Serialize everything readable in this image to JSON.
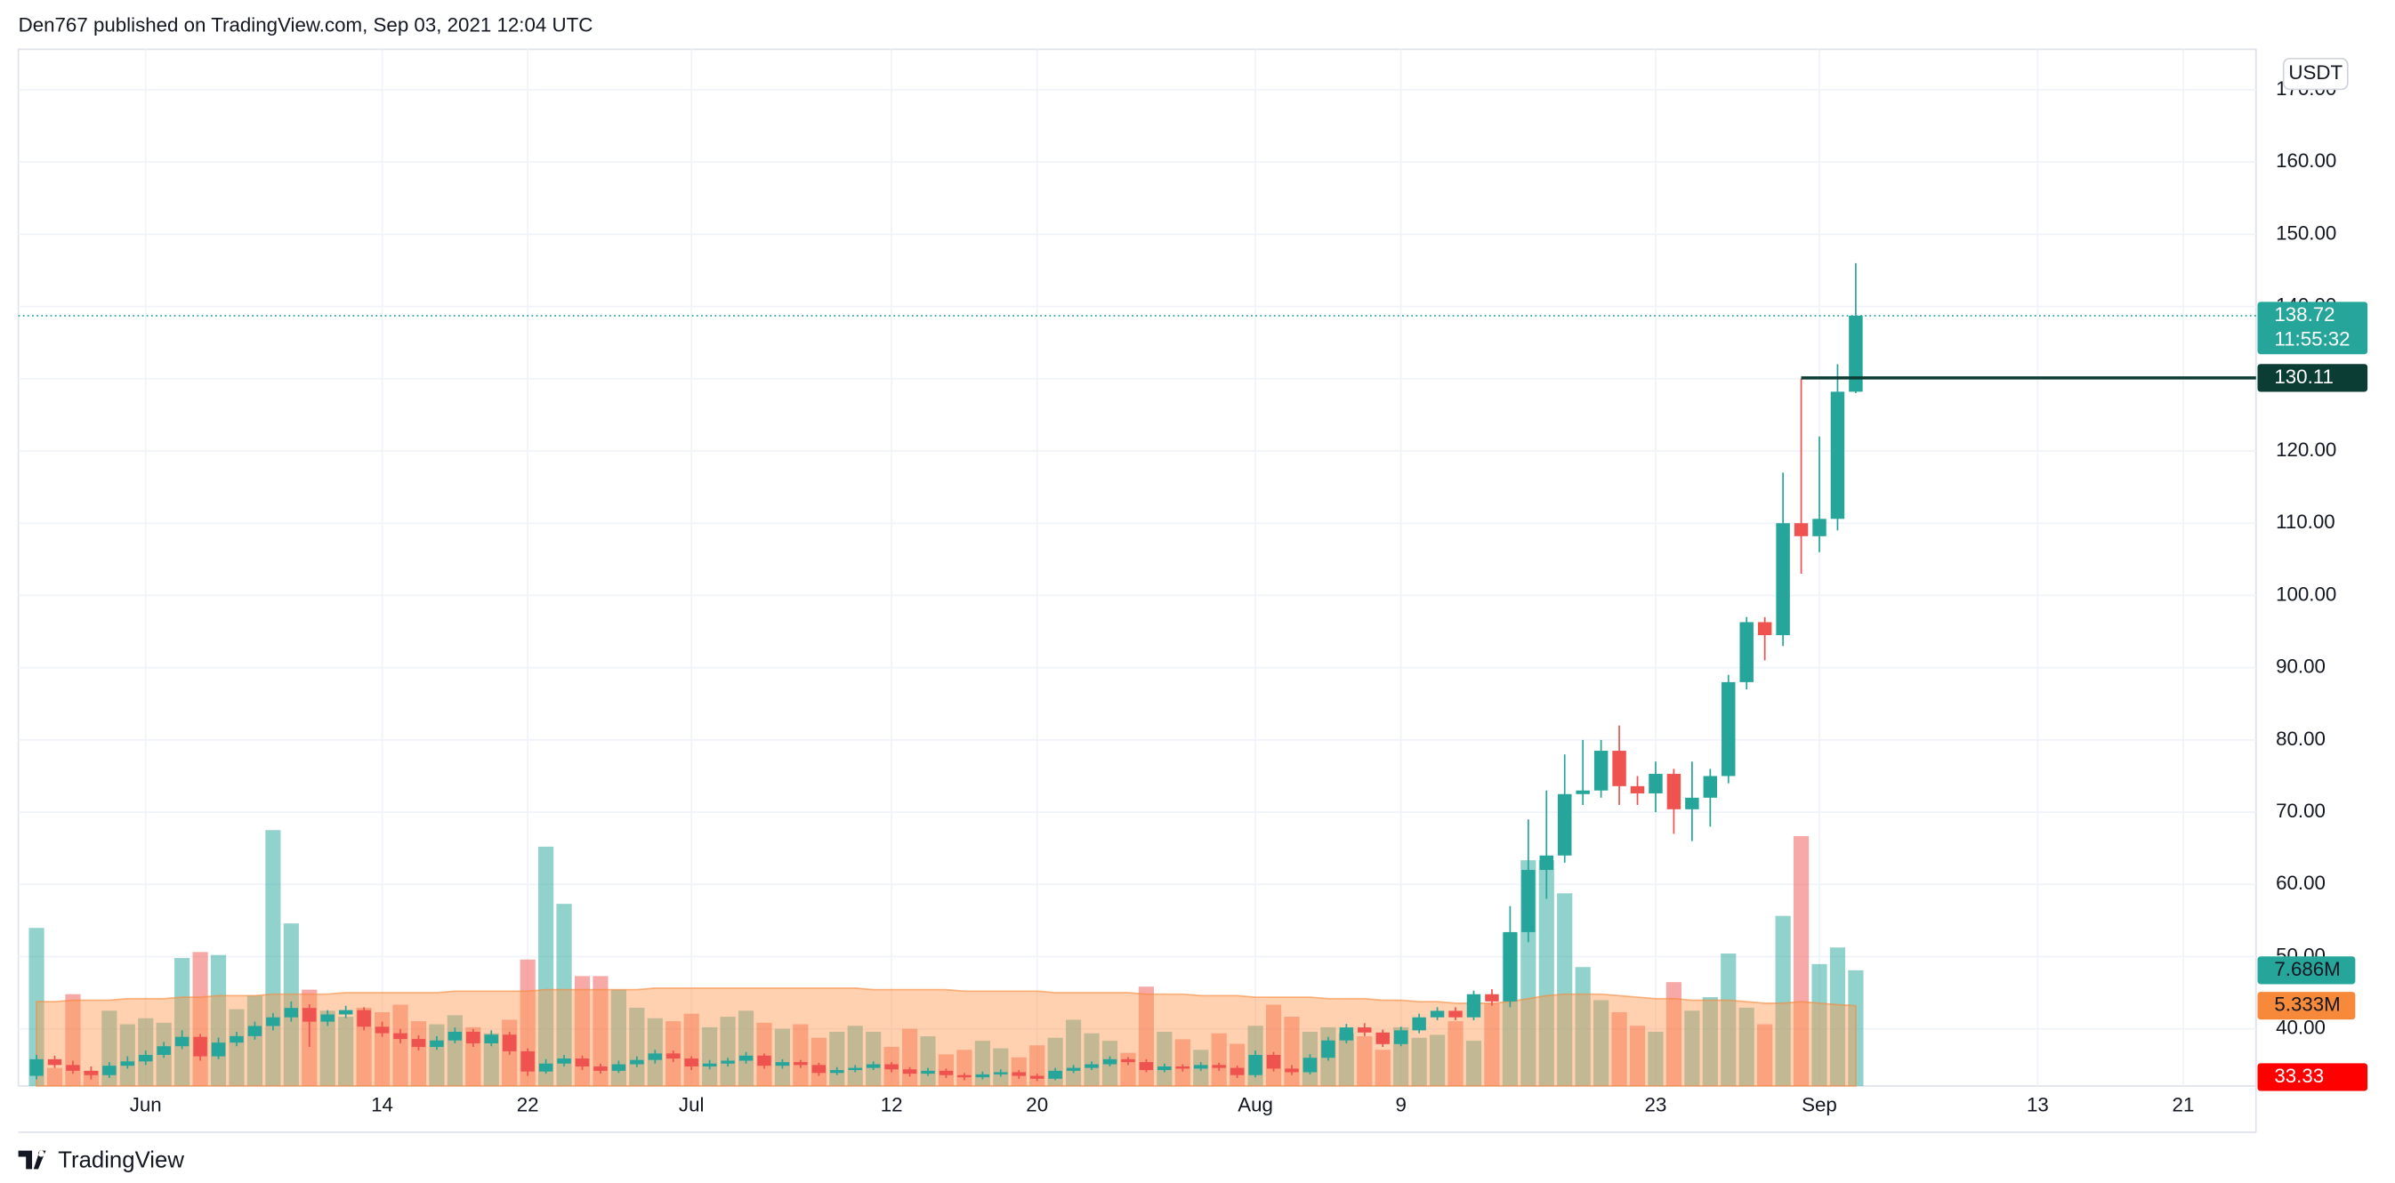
{
  "header": "Den767 published on TradingView.com, Sep 03, 2021 12:04 UTC",
  "footer": "TradingView",
  "chart_data": {
    "type": "candlestick",
    "currency": "USDT",
    "up_color": "#26a69a",
    "down_color": "#ef5350",
    "grid": true,
    "x": [
      "2021-05-26",
      "2021-05-27",
      "2021-05-28",
      "2021-05-29",
      "2021-05-30",
      "2021-05-31",
      "2021-06-01",
      "2021-06-02",
      "2021-06-03",
      "2021-06-04",
      "2021-06-05",
      "2021-06-06",
      "2021-06-07",
      "2021-06-08",
      "2021-06-09",
      "2021-06-10",
      "2021-06-11",
      "2021-06-12",
      "2021-06-13",
      "2021-06-14",
      "2021-06-15",
      "2021-06-16",
      "2021-06-17",
      "2021-06-18",
      "2021-06-19",
      "2021-06-20",
      "2021-06-21",
      "2021-06-22",
      "2021-06-23",
      "2021-06-24",
      "2021-06-25",
      "2021-06-26",
      "2021-06-27",
      "2021-06-28",
      "2021-06-29",
      "2021-06-30",
      "2021-07-01",
      "2021-07-02",
      "2021-07-03",
      "2021-07-04",
      "2021-07-05",
      "2021-07-06",
      "2021-07-07",
      "2021-07-08",
      "2021-07-09",
      "2021-07-10",
      "2021-07-11",
      "2021-07-12",
      "2021-07-13",
      "2021-07-14",
      "2021-07-15",
      "2021-07-16",
      "2021-07-17",
      "2021-07-18",
      "2021-07-19",
      "2021-07-20",
      "2021-07-21",
      "2021-07-22",
      "2021-07-23",
      "2021-07-24",
      "2021-07-25",
      "2021-07-26",
      "2021-07-27",
      "2021-07-28",
      "2021-07-29",
      "2021-07-30",
      "2021-07-31",
      "2021-08-01",
      "2021-08-02",
      "2021-08-03",
      "2021-08-04",
      "2021-08-05",
      "2021-08-06",
      "2021-08-07",
      "2021-08-08",
      "2021-08-09",
      "2021-08-10",
      "2021-08-11",
      "2021-08-12",
      "2021-08-13",
      "2021-08-14",
      "2021-08-15",
      "2021-08-16",
      "2021-08-17",
      "2021-08-18",
      "2021-08-19",
      "2021-08-20",
      "2021-08-21",
      "2021-08-22",
      "2021-08-23",
      "2021-08-24",
      "2021-08-25",
      "2021-08-26",
      "2021-08-27",
      "2021-08-28",
      "2021-08-29",
      "2021-08-30",
      "2021-08-31",
      "2021-09-01",
      "2021-09-02",
      "2021-09-03"
    ],
    "ohlc": [
      [
        33.5,
        36.4,
        33.0,
        35.8
      ],
      [
        35.8,
        36.3,
        34.6,
        35.0
      ],
      [
        35.0,
        35.6,
        33.8,
        34.2
      ],
      [
        34.2,
        34.8,
        33.0,
        33.6
      ],
      [
        33.6,
        35.4,
        33.2,
        34.9
      ],
      [
        34.9,
        36.2,
        34.5,
        35.5
      ],
      [
        35.5,
        37.0,
        35.0,
        36.4
      ],
      [
        36.4,
        38.2,
        36.0,
        37.6
      ],
      [
        37.6,
        39.8,
        37.2,
        38.9
      ],
      [
        38.9,
        39.3,
        35.6,
        36.2
      ],
      [
        36.2,
        38.8,
        35.8,
        38.1
      ],
      [
        38.1,
        39.6,
        37.6,
        39.0
      ],
      [
        39.0,
        41.0,
        38.5,
        40.4
      ],
      [
        40.4,
        42.2,
        39.8,
        41.6
      ],
      [
        41.6,
        43.8,
        41.0,
        42.9
      ],
      [
        42.9,
        43.4,
        37.5,
        41.0
      ],
      [
        41.0,
        42.6,
        40.4,
        42.0
      ],
      [
        42.0,
        43.2,
        41.5,
        42.6
      ],
      [
        42.6,
        43.0,
        39.8,
        40.3
      ],
      [
        40.3,
        41.0,
        38.9,
        39.4
      ],
      [
        39.4,
        40.0,
        38.0,
        38.6
      ],
      [
        38.6,
        39.1,
        37.0,
        37.5
      ],
      [
        37.5,
        39.0,
        37.1,
        38.4
      ],
      [
        38.4,
        40.2,
        38.0,
        39.6
      ],
      [
        39.6,
        40.0,
        37.5,
        38.0
      ],
      [
        38.0,
        39.8,
        37.6,
        39.2
      ],
      [
        39.2,
        39.6,
        36.4,
        36.9
      ],
      [
        36.9,
        37.3,
        33.5,
        34.1
      ],
      [
        34.1,
        35.8,
        33.8,
        35.2
      ],
      [
        35.2,
        36.4,
        34.8,
        35.9
      ],
      [
        35.9,
        36.3,
        34.3,
        34.8
      ],
      [
        34.8,
        35.2,
        33.8,
        34.2
      ],
      [
        34.2,
        35.6,
        33.9,
        35.1
      ],
      [
        35.1,
        36.2,
        34.7,
        35.7
      ],
      [
        35.7,
        37.1,
        35.2,
        36.6
      ],
      [
        36.6,
        37.0,
        35.4,
        35.9
      ],
      [
        35.9,
        36.2,
        34.3,
        34.8
      ],
      [
        34.8,
        35.7,
        34.4,
        35.2
      ],
      [
        35.2,
        36.0,
        34.8,
        35.6
      ],
      [
        35.6,
        36.8,
        35.2,
        36.3
      ],
      [
        36.3,
        36.6,
        34.5,
        34.9
      ],
      [
        34.9,
        35.8,
        34.5,
        35.4
      ],
      [
        35.4,
        35.7,
        34.6,
        35.0
      ],
      [
        35.0,
        35.3,
        33.5,
        33.9
      ],
      [
        33.9,
        34.7,
        33.6,
        34.3
      ],
      [
        34.3,
        35.0,
        34.0,
        34.6
      ],
      [
        34.6,
        35.5,
        34.3,
        35.1
      ],
      [
        35.1,
        35.4,
        34.0,
        34.4
      ],
      [
        34.4,
        34.7,
        33.4,
        33.8
      ],
      [
        33.8,
        34.6,
        33.5,
        34.2
      ],
      [
        34.2,
        34.5,
        33.2,
        33.6
      ],
      [
        33.6,
        33.9,
        32.9,
        33.3
      ],
      [
        33.3,
        34.1,
        33.0,
        33.7
      ],
      [
        33.7,
        34.4,
        33.4,
        34.0
      ],
      [
        34.0,
        34.3,
        33.1,
        33.5
      ],
      [
        33.5,
        33.8,
        32.8,
        33.1
      ],
      [
        33.1,
        34.6,
        32.9,
        34.2
      ],
      [
        34.2,
        35.0,
        33.9,
        34.6
      ],
      [
        34.6,
        35.5,
        34.3,
        35.1
      ],
      [
        35.1,
        36.2,
        34.8,
        35.8
      ],
      [
        35.8,
        36.1,
        35.0,
        35.4
      ],
      [
        35.4,
        35.8,
        34.0,
        34.3
      ],
      [
        34.3,
        35.2,
        34.0,
        34.8
      ],
      [
        34.8,
        35.1,
        34.1,
        34.5
      ],
      [
        34.5,
        35.4,
        34.2,
        35.0
      ],
      [
        35.0,
        35.3,
        34.2,
        34.6
      ],
      [
        34.6,
        34.9,
        33.2,
        33.6
      ],
      [
        33.6,
        37.0,
        33.3,
        36.4
      ],
      [
        36.4,
        36.8,
        34.1,
        34.5
      ],
      [
        34.5,
        35.0,
        33.6,
        34.0
      ],
      [
        34.0,
        36.5,
        33.7,
        36.0
      ],
      [
        36.0,
        38.9,
        35.6,
        38.4
      ],
      [
        38.4,
        40.7,
        38.0,
        40.2
      ],
      [
        40.2,
        40.8,
        39.0,
        39.5
      ],
      [
        39.5,
        39.9,
        37.5,
        37.9
      ],
      [
        37.9,
        40.3,
        37.6,
        39.8
      ],
      [
        39.8,
        42.1,
        39.4,
        41.6
      ],
      [
        41.6,
        43.0,
        41.2,
        42.5
      ],
      [
        42.5,
        43.0,
        41.2,
        41.6
      ],
      [
        41.6,
        45.3,
        41.2,
        44.8
      ],
      [
        44.8,
        45.5,
        43.2,
        43.8
      ],
      [
        43.8,
        57.0,
        43.0,
        53.4
      ],
      [
        53.4,
        69.0,
        52.0,
        62.0
      ],
      [
        62.0,
        73.0,
        58.0,
        64.0
      ],
      [
        64.0,
        78.0,
        63.0,
        72.5
      ],
      [
        72.5,
        80.0,
        71.0,
        73.0
      ],
      [
        73.0,
        80.0,
        72.0,
        78.5
      ],
      [
        78.5,
        82.0,
        71.0,
        73.6
      ],
      [
        73.6,
        75.0,
        71.0,
        72.6
      ],
      [
        72.6,
        77.0,
        70.0,
        75.3
      ],
      [
        75.3,
        76.0,
        67.0,
        70.4
      ],
      [
        70.4,
        77.0,
        66.0,
        72.0
      ],
      [
        72.0,
        76.0,
        68.0,
        75.0
      ],
      [
        75.0,
        89.0,
        74.0,
        88.0
      ],
      [
        88.0,
        97.0,
        87.0,
        96.3
      ],
      [
        96.3,
        97.0,
        91.0,
        94.5
      ],
      [
        94.5,
        117.0,
        93.0,
        110.0
      ],
      [
        110.0,
        130.0,
        103.0,
        108.2
      ],
      [
        108.2,
        122.0,
        106.0,
        110.6
      ],
      [
        110.6,
        132.0,
        109.0,
        128.2
      ],
      [
        128.2,
        146.0,
        128.0,
        138.72
      ]
    ],
    "volume": [
      10.5,
      1.2,
      6.1,
      1.0,
      5.0,
      4.1,
      4.5,
      4.2,
      8.5,
      8.9,
      8.7,
      5.1,
      6.0,
      17.0,
      10.8,
      6.4,
      5.0,
      4.6,
      5.2,
      4.9,
      5.4,
      4.3,
      4.1,
      4.7,
      3.9,
      3.5,
      4.4,
      8.4,
      15.9,
      12.1,
      7.3,
      7.3,
      6.4,
      5.2,
      4.5,
      4.3,
      4.8,
      3.9,
      4.6,
      5.0,
      4.2,
      3.8,
      4.1,
      3.2,
      3.6,
      4.0,
      3.6,
      2.6,
      3.8,
      3.3,
      2.1,
      2.4,
      3.0,
      2.5,
      1.9,
      2.7,
      3.2,
      4.4,
      3.5,
      3.0,
      2.2,
      6.6,
      3.6,
      3.1,
      2.4,
      3.5,
      2.8,
      4.0,
      5.4,
      4.6,
      3.6,
      3.9,
      3.5,
      3.3,
      2.4,
      3.9,
      3.2,
      3.4,
      4.3,
      3.0,
      5.5,
      10.2,
      15.0,
      15.0,
      12.8,
      7.9,
      5.7,
      4.9,
      4.0,
      3.6,
      6.9,
      5.0,
      5.9,
      8.8,
      5.2,
      4.1,
      11.3,
      16.6,
      8.1,
      9.2,
      7.686
    ],
    "volume_ma": [
      5.6,
      5.6,
      5.7,
      5.7,
      5.7,
      5.8,
      5.8,
      5.8,
      5.9,
      5.9,
      6.0,
      6.0,
      6.0,
      6.1,
      6.1,
      6.1,
      6.1,
      6.2,
      6.2,
      6.2,
      6.2,
      6.2,
      6.2,
      6.3,
      6.3,
      6.3,
      6.3,
      6.3,
      6.4,
      6.4,
      6.4,
      6.4,
      6.4,
      6.4,
      6.5,
      6.5,
      6.5,
      6.5,
      6.5,
      6.5,
      6.5,
      6.5,
      6.5,
      6.5,
      6.5,
      6.5,
      6.4,
      6.4,
      6.4,
      6.4,
      6.4,
      6.3,
      6.3,
      6.3,
      6.3,
      6.3,
      6.2,
      6.2,
      6.2,
      6.2,
      6.2,
      6.1,
      6.1,
      6.1,
      6.0,
      6.0,
      6.0,
      5.9,
      5.9,
      5.9,
      5.9,
      5.8,
      5.8,
      5.8,
      5.7,
      5.7,
      5.6,
      5.6,
      5.5,
      5.5,
      5.5,
      5.6,
      5.8,
      6.0,
      6.1,
      6.1,
      6.1,
      6.0,
      5.9,
      5.8,
      5.8,
      5.7,
      5.7,
      5.7,
      5.6,
      5.5,
      5.5,
      5.6,
      5.5,
      5.4,
      5.333
    ],
    "volume_lim": [
      0,
      17.4
    ],
    "ylim": [
      32.1,
      175.6
    ],
    "yticks": [
      {
        "value": 40,
        "label": "40.00"
      },
      {
        "value": 50,
        "label": "50.00"
      },
      {
        "value": 60,
        "label": "60.00"
      },
      {
        "value": 70,
        "label": "70.00"
      },
      {
        "value": 80,
        "label": "80.00"
      },
      {
        "value": 90,
        "label": "90.00"
      },
      {
        "value": 100,
        "label": "100.00"
      },
      {
        "value": 110,
        "label": "110.00"
      },
      {
        "value": 120,
        "label": "120.00"
      },
      {
        "value": 130,
        "label": "130.00"
      },
      {
        "value": 140,
        "label": "140.00"
      },
      {
        "value": 150,
        "label": "150.00"
      },
      {
        "value": 160,
        "label": "160.00"
      },
      {
        "value": 170,
        "label": "170.00"
      }
    ],
    "xlim": [
      "2021-05-25",
      "2021-09-25"
    ],
    "xticks": [
      {
        "value": "2021-06-01",
        "label": "Jun"
      },
      {
        "value": "2021-06-14",
        "label": "14"
      },
      {
        "value": "2021-06-22",
        "label": "22"
      },
      {
        "value": "2021-07-01",
        "label": "Jul"
      },
      {
        "value": "2021-07-12",
        "label": "12"
      },
      {
        "value": "2021-07-20",
        "label": "20"
      },
      {
        "value": "2021-08-01",
        "label": "Aug"
      },
      {
        "value": "2021-08-09",
        "label": "9"
      },
      {
        "value": "2021-08-23",
        "label": "23"
      },
      {
        "value": "2021-09-01",
        "label": "Sep"
      },
      {
        "value": "2021-09-13",
        "label": "13"
      },
      {
        "value": "2021-09-21",
        "label": "21"
      }
    ],
    "price_lines": [
      {
        "value": 138.72,
        "label": "138.72",
        "sub": "11:55:32",
        "color": "#26a69a",
        "dotted": true
      },
      {
        "value": 130.11,
        "label": "130.11",
        "color": "#0b3d35",
        "from": "2021-08-31"
      },
      {
        "value": 33.33,
        "label": "33.33",
        "color": "#ff0000"
      }
    ],
    "volume_labels": [
      {
        "value": 7.686,
        "label": "7.686M",
        "color": "#26a69a"
      },
      {
        "value": 5.333,
        "label": "5.333M",
        "color": "#f7893b"
      }
    ]
  }
}
